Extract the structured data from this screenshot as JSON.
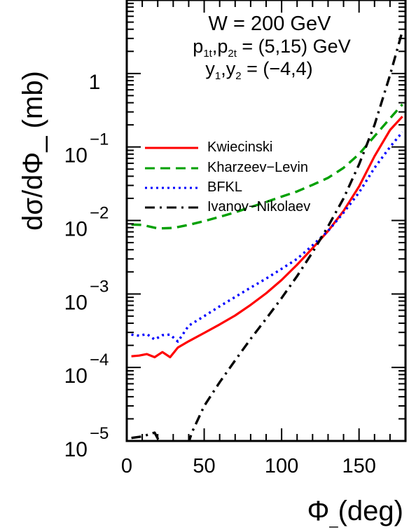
{
  "chart_data": {
    "type": "line",
    "xlabel": "Φ_(deg)",
    "ylabel": "dσ/dΦ_ (mb)",
    "xlim": [
      0,
      180
    ],
    "ylim_log10": [
      -5,
      1
    ],
    "y_scale": "log",
    "x_ticks": [
      {
        "value": 0,
        "label": "0"
      },
      {
        "value": 50,
        "label": "50"
      },
      {
        "value": 100,
        "label": "100"
      },
      {
        "value": 150,
        "label": "150"
      }
    ],
    "y_ticks": [
      {
        "exp": -5,
        "base": "10",
        "sup": "−5"
      },
      {
        "exp": -4,
        "base": "10",
        "sup": "−4"
      },
      {
        "exp": -3,
        "base": "10",
        "sup": "−3"
      },
      {
        "exp": -2,
        "base": "10",
        "sup": "−2"
      },
      {
        "exp": -1,
        "base": "10",
        "sup": "−1"
      },
      {
        "exp": 0,
        "base": "1",
        "sup": ""
      }
    ],
    "annotations": [
      "W = 200 GeV",
      "p1t,p2t = (5,15) GeV",
      "y1,y2 = (−4,4)"
    ],
    "legend_position": "upper-left",
    "grid": false,
    "series": [
      {
        "name": "Kwiecinski",
        "color": "#ff0000",
        "dash": "solid",
        "x": [
          3,
          8,
          13,
          18,
          23,
          28,
          33,
          40,
          50,
          60,
          70,
          80,
          90,
          100,
          110,
          120,
          130,
          140,
          150,
          160,
          170,
          178
        ],
        "y": [
          0.000142,
          0.000145,
          0.000152,
          0.000138,
          0.000162,
          0.000138,
          0.000187,
          0.000227,
          0.000295,
          0.000385,
          0.00051,
          0.00071,
          0.00102,
          0.00155,
          0.0025,
          0.0042,
          0.0072,
          0.0135,
          0.029,
          0.075,
          0.17,
          0.26
        ]
      },
      {
        "name": "Kharzeev−Levin",
        "color": "#00a000",
        "dash": "dashed",
        "x": [
          3,
          10,
          20,
          30,
          40,
          50,
          60,
          70,
          80,
          90,
          100,
          110,
          120,
          130,
          140,
          150,
          160,
          170,
          178
        ],
        "y": [
          0.0088,
          0.0087,
          0.0078,
          0.0079,
          0.0087,
          0.0098,
          0.0112,
          0.0129,
          0.0152,
          0.0178,
          0.0211,
          0.0248,
          0.0305,
          0.038,
          0.052,
          0.08,
          0.14,
          0.245,
          0.38
        ]
      },
      {
        "name": "BFKL",
        "color": "#0000ff",
        "dash": "dotted",
        "x": [
          3,
          8,
          13,
          18,
          23,
          28,
          33,
          40,
          50,
          60,
          70,
          80,
          90,
          100,
          110,
          120,
          130,
          140,
          150,
          160,
          170,
          178
        ],
        "y": [
          0.00028,
          0.00027,
          0.000285,
          0.00024,
          0.000275,
          0.00028,
          0.000225,
          0.00037,
          0.0005,
          0.00068,
          0.00091,
          0.00122,
          0.00162,
          0.0022,
          0.003,
          0.0046,
          0.0072,
          0.0128,
          0.024,
          0.052,
          0.1,
          0.16
        ]
      },
      {
        "name": "Ivanov−Nikolaev",
        "color": "#000000",
        "dash": "dash-dot",
        "x": [
          3,
          10,
          18,
          22,
          26,
          30,
          34,
          38,
          42,
          50,
          60,
          70,
          80,
          90,
          100,
          110,
          120,
          130,
          140,
          150,
          160,
          170,
          178
        ],
        "y": [
          1.1e-05,
          1.15e-05,
          1.3e-05,
          9e-06,
          6e-06,
          5e-06,
          5e-06,
          7e-06,
          1.3e-05,
          3e-05,
          6.3e-05,
          0.000125,
          0.000245,
          0.00046,
          0.00088,
          0.00175,
          0.0037,
          0.0083,
          0.02,
          0.058,
          0.2,
          0.95,
          3.8
        ]
      }
    ]
  }
}
